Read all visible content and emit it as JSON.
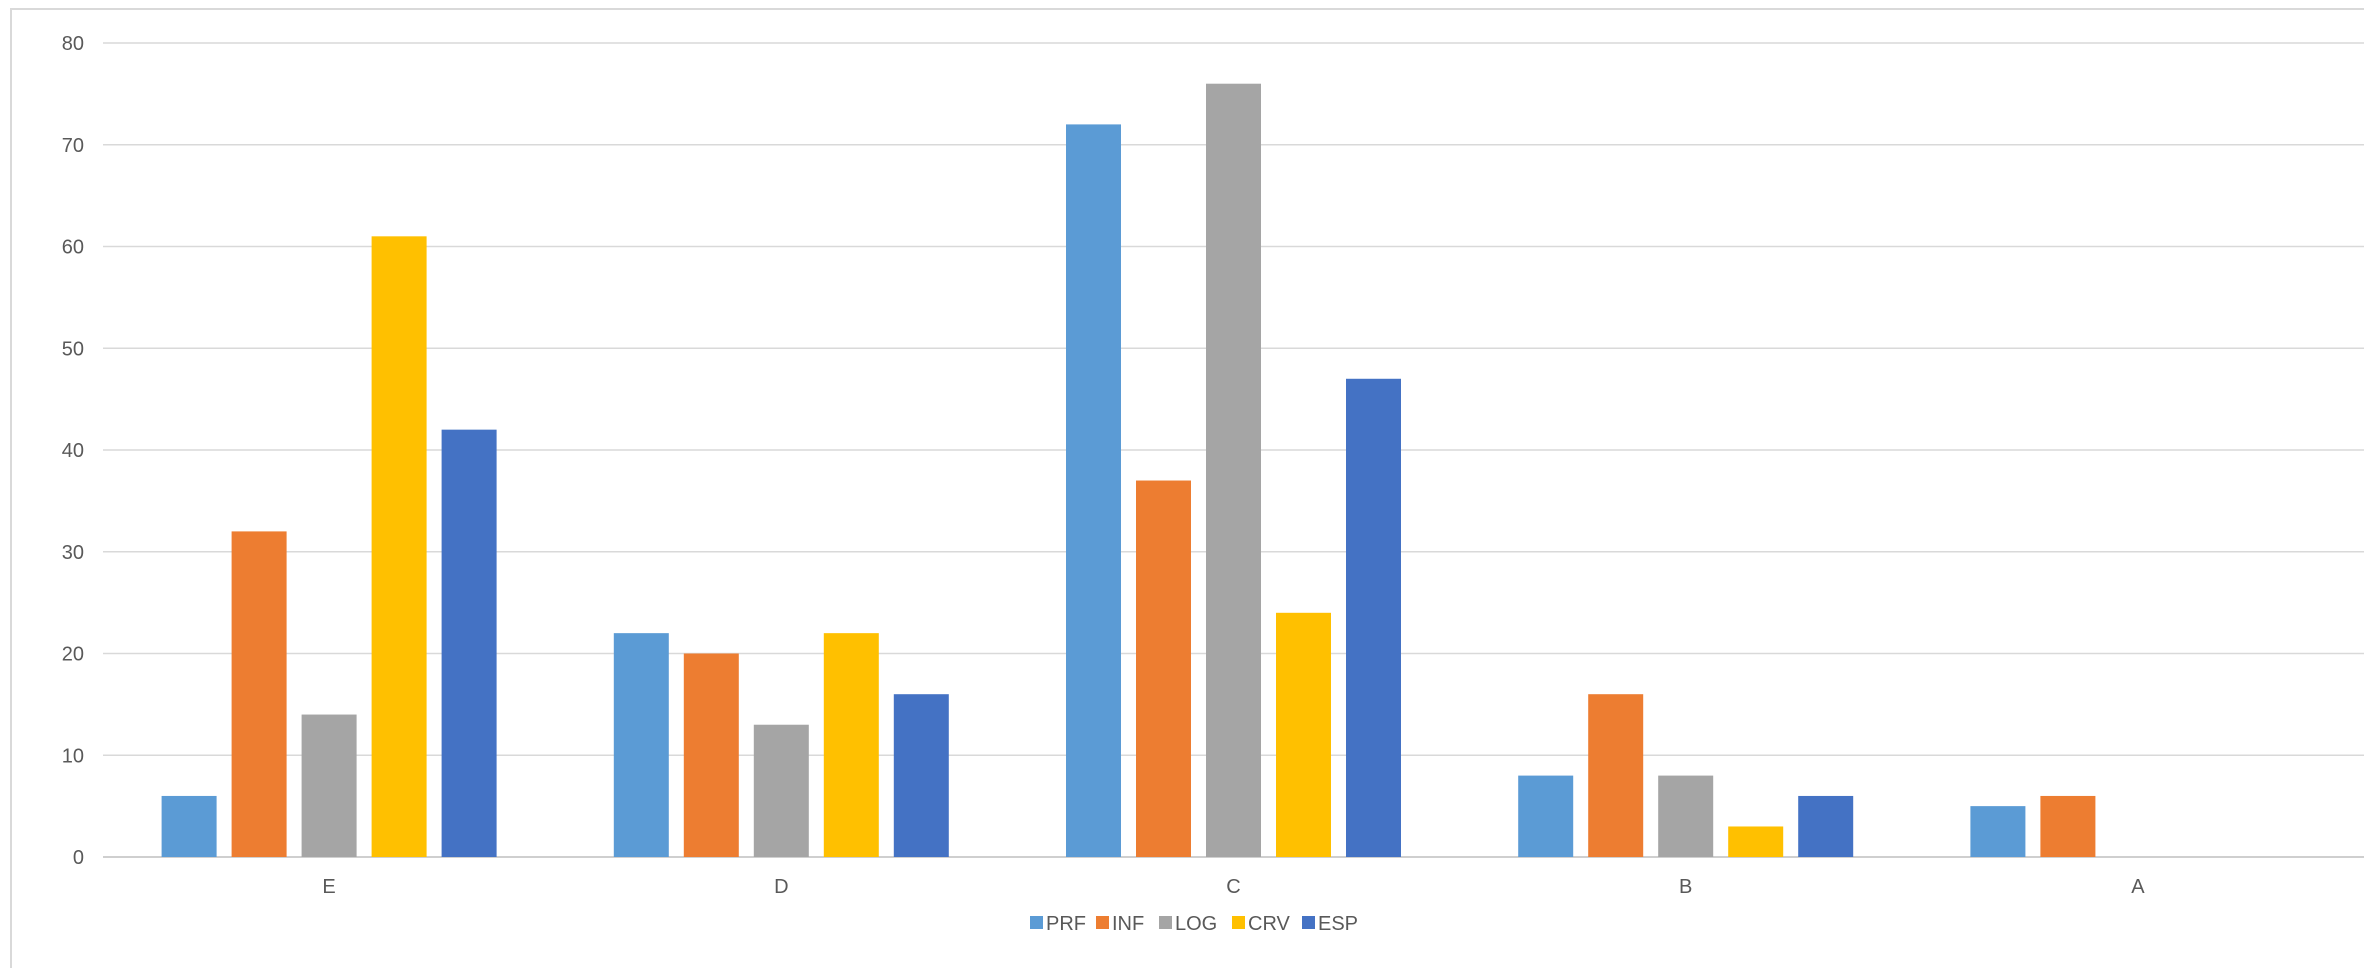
{
  "chart_data": {
    "type": "bar",
    "categories": [
      "E",
      "D",
      "C",
      "B",
      "A"
    ],
    "series": [
      {
        "name": "PRF",
        "color": "#5b9bd5",
        "values": [
          6,
          22,
          72,
          8,
          5
        ]
      },
      {
        "name": "INF",
        "color": "#ed7d31",
        "values": [
          32,
          20,
          37,
          16,
          6
        ]
      },
      {
        "name": "LOG",
        "color": "#a5a5a5",
        "values": [
          14,
          13,
          76,
          8,
          0
        ]
      },
      {
        "name": "CRV",
        "color": "#ffc000",
        "values": [
          61,
          22,
          24,
          3,
          0
        ]
      },
      {
        "name": "ESP",
        "color": "#4472c4",
        "values": [
          42,
          16,
          47,
          6,
          0
        ]
      }
    ],
    "ylim": [
      0,
      80
    ],
    "yticks": [
      "0",
      "10",
      "20",
      "30",
      "40",
      "50",
      "60",
      "70",
      "80"
    ],
    "grid": true,
    "legend": "bottom-center"
  }
}
